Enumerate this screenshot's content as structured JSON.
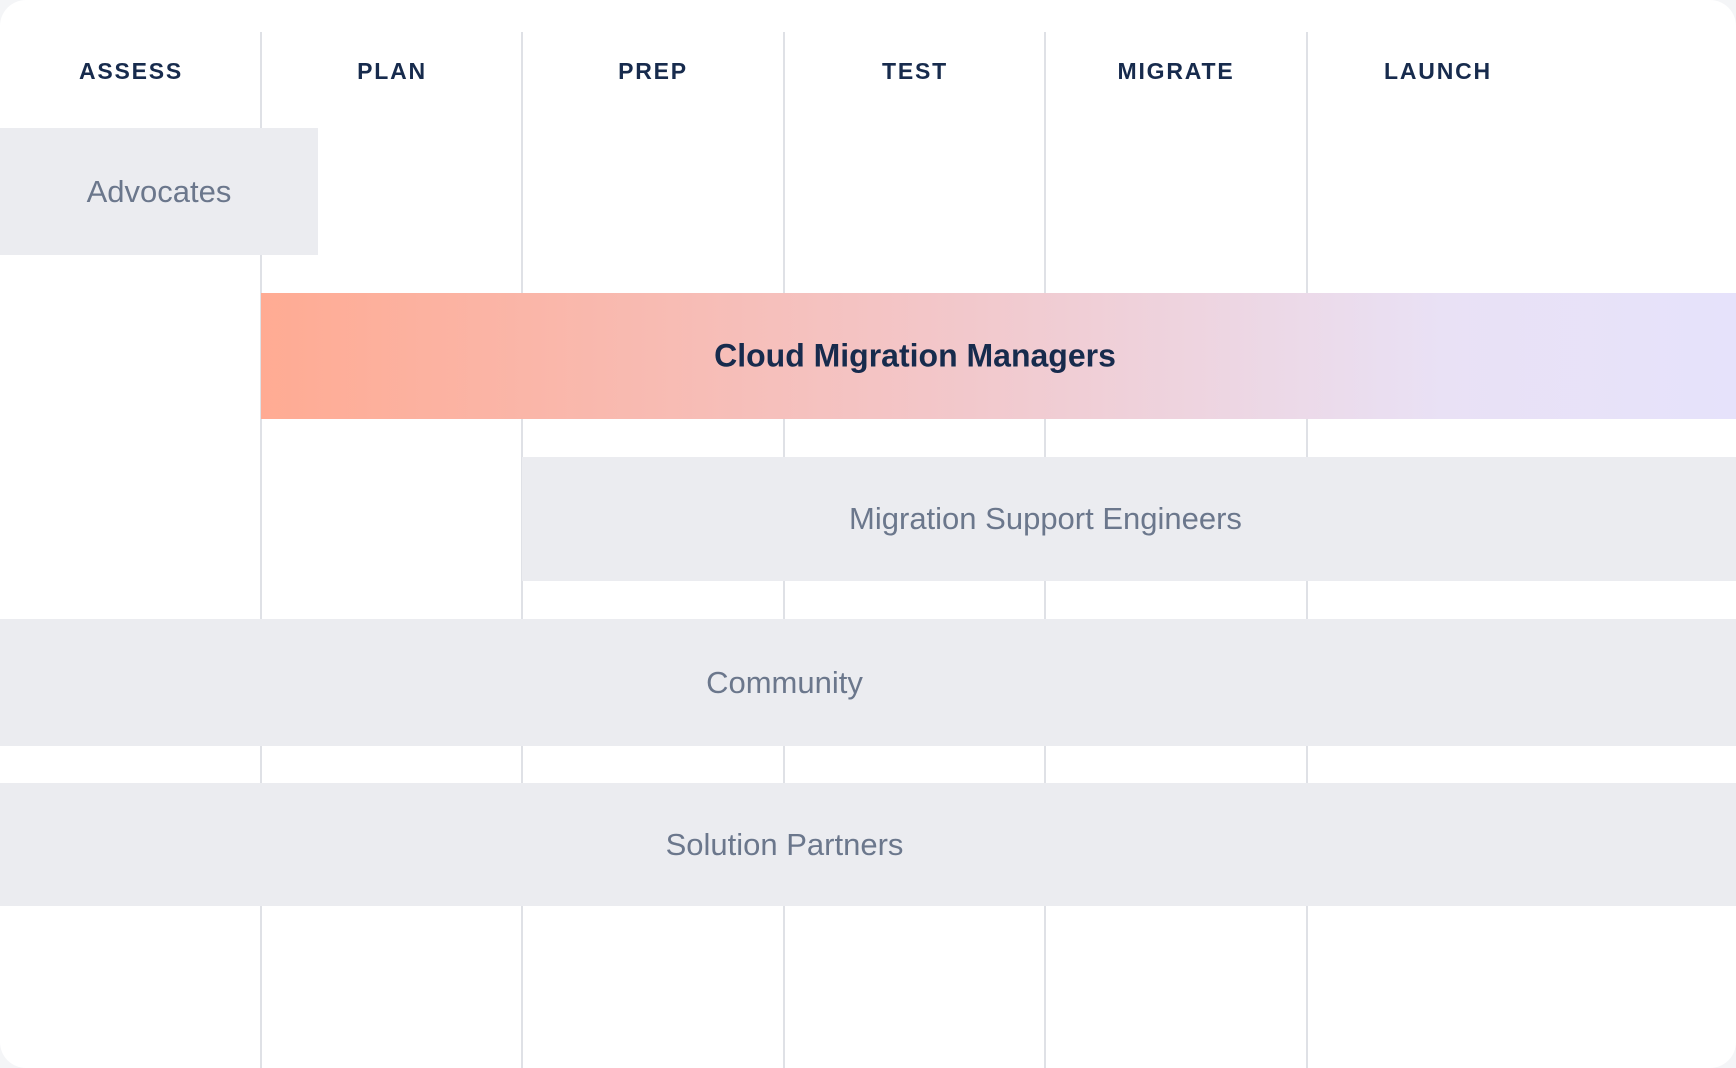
{
  "card": {
    "columns": [
      "ASSESS",
      "PLAN",
      "PREP",
      "TEST",
      "MIGRATE",
      "LAUNCH"
    ],
    "bars": [
      {
        "label": "Advocates",
        "phases": [
          "ASSESS"
        ],
        "highlight": false
      },
      {
        "label": "Cloud Migration Managers",
        "phases": [
          "PLAN",
          "PREP",
          "TEST",
          "MIGRATE",
          "LAUNCH"
        ],
        "highlight": true
      },
      {
        "label": "Migration Support Engineers",
        "phases": [
          "PREP",
          "TEST",
          "MIGRATE",
          "LAUNCH"
        ],
        "highlight": false
      },
      {
        "label": "Community",
        "phases": [
          "ASSESS",
          "PLAN",
          "PREP",
          "TEST",
          "MIGRATE",
          "LAUNCH"
        ],
        "highlight": false
      },
      {
        "label": "Solution Partners",
        "phases": [
          "ASSESS",
          "PLAN",
          "PREP",
          "TEST",
          "MIGRATE",
          "LAUNCH"
        ],
        "highlight": false
      }
    ],
    "colors": {
      "header_text": "#172B4D",
      "bar_background": "#EBECF0",
      "bar_text": "#6B778C",
      "highlight_text": "#172B4D",
      "highlight_gradient_start": "#FFAB93",
      "highlight_gradient_end": "#E6E2FA",
      "grid_line": "#DFE1E6",
      "card_background": "#FFFFFF"
    }
  }
}
